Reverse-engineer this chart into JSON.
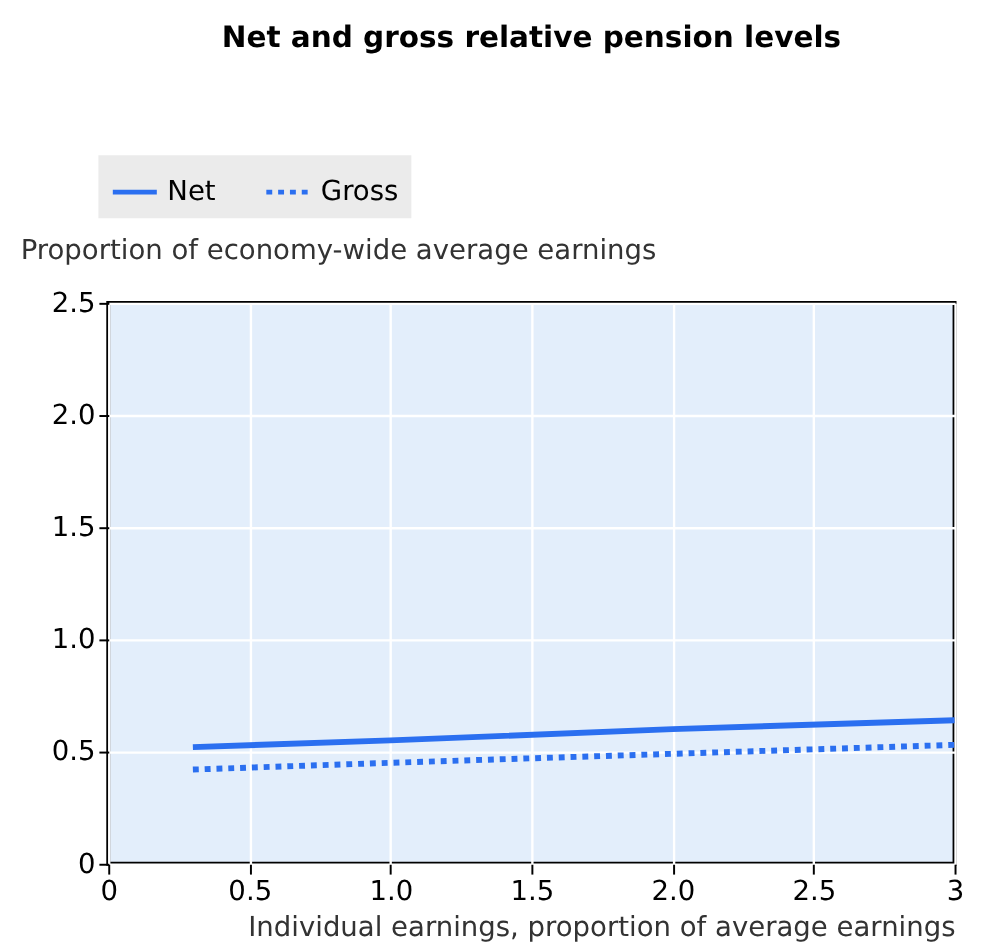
{
  "chart_data": {
    "type": "line",
    "title": "Net and gross relative pension levels",
    "xlabel": "Individual earnings, proportion of average earnings",
    "ylabel": "Proportion of economy-wide average earnings",
    "x": [
      0.3,
      1.0,
      2.0,
      3.0
    ],
    "series": [
      {
        "name": "Net",
        "color": "#2b6ff0",
        "line_style": "solid",
        "values": [
          0.52,
          0.55,
          0.6,
          0.64
        ]
      },
      {
        "name": "Gross",
        "color": "#2b6ff0",
        "line_style": "dotted",
        "values": [
          0.42,
          0.45,
          0.49,
          0.53
        ]
      }
    ],
    "xlim": [
      0,
      3
    ],
    "xticks": [
      0,
      0.5,
      {
        "value": 1,
        "label": "1.0"
      },
      1.5,
      {
        "value": 2,
        "label": "2.0"
      },
      2.5,
      3
    ],
    "ylim": [
      0,
      2.5
    ],
    "yticks": [
      0,
      0.5,
      {
        "value": 1,
        "label": "1.0"
      },
      1.5,
      {
        "value": 2,
        "label": "2.0"
      },
      2.5
    ],
    "grid": true,
    "legend": "top"
  }
}
